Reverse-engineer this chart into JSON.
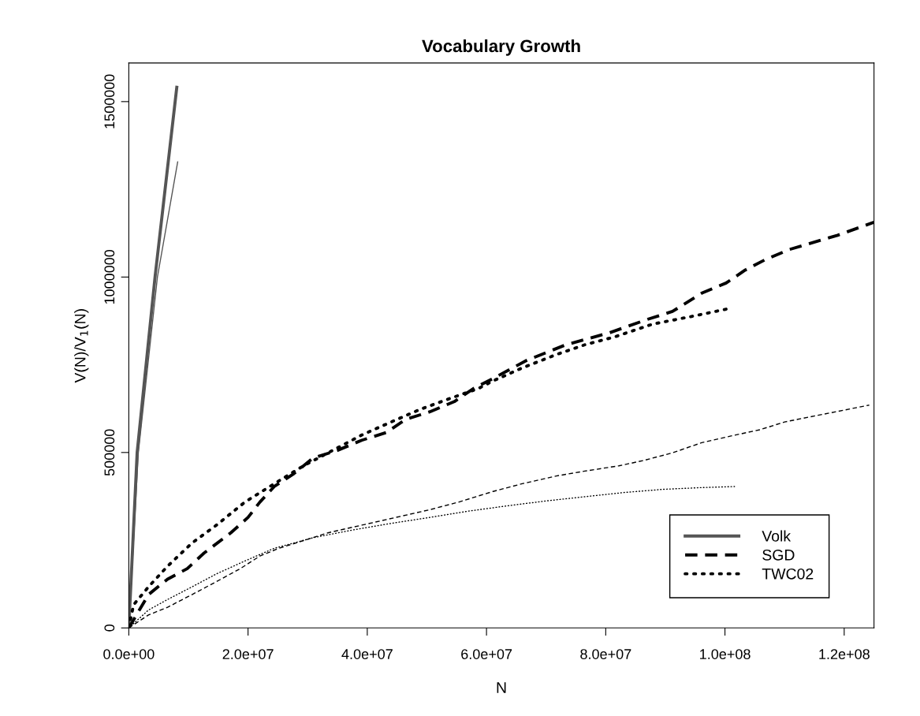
{
  "chart_data": {
    "type": "line",
    "title": "Vocabulary Growth",
    "xlabel": "N",
    "ylabel": "V(N)/V$_{1}$(N)",
    "xlim": [
      0,
      125000000
    ],
    "ylim": [
      0,
      1610000
    ],
    "xticks": [
      {
        "value": 0,
        "label": "0.0e+00"
      },
      {
        "value": 20000000,
        "label": "2.0e+07"
      },
      {
        "value": 40000000,
        "label": "4.0e+07"
      },
      {
        "value": 60000000,
        "label": "6.0e+07"
      },
      {
        "value": 80000000,
        "label": "8.0e+07"
      },
      {
        "value": 100000000,
        "label": "1.0e+08"
      },
      {
        "value": 120000000,
        "label": "1.2e+08"
      }
    ],
    "yticks": [
      0,
      500000,
      1000000,
      1500000
    ],
    "grid": false,
    "legend": "bottom right",
    "marker": "none",
    "series": [
      {
        "name": "Volk",
        "color": "#555555",
        "line_style": "solid",
        "x": [
          0,
          1400000,
          4400000,
          8050000
        ],
        "values": [
          0,
          500000,
          1000000,
          1541000
        ]
      },
      {
        "color": "#555555",
        "line_style": "solid",
        "x": [
          0,
          1600000,
          4800000,
          8200000
        ],
        "values": [
          0,
          500000,
          1000000,
          1328000
        ]
      },
      {
        "name": "SGD",
        "color": "#000000",
        "line_style": "dashed",
        "x": [
          0,
          3300000,
          6500000,
          9800000,
          12600000,
          17100000,
          20000000,
          22000000,
          24400000,
          27700000,
          30900000,
          35000000,
          39100000,
          43200000,
          46400000,
          50500000,
          54600000,
          57800000,
          61100000,
          66800000,
          73300000,
          80600000,
          87100000,
          91200000,
          96100000,
          100200000,
          103400000,
          106700000,
          110700000,
          118900000,
          125000000
        ],
        "values": [
          0,
          95000,
          139000,
          169000,
          213000,
          271000,
          315000,
          359000,
          403000,
          440000,
          484000,
          506000,
          535000,
          557000,
          594000,
          616000,
          645000,
          682000,
          711000,
          763000,
          807000,
          841000,
          880000,
          902000,
          954000,
          983000,
          1020000,
          1049000,
          1078000,
          1119000,
          1156000
        ]
      },
      {
        "color": "#000000",
        "line_style": "dashed",
        "x": [
          0,
          3300000,
          6500000,
          10600000,
          14700000,
          18700000,
          22000000,
          25200000,
          29300000,
          33400000,
          39100000,
          44800000,
          50500000,
          55400000,
          61100000,
          66000000,
          71700000,
          76500000,
          82200000,
          86300000,
          91200000,
          96100000,
          101000000,
          105900000,
          110000000,
          115600000,
          124200000
        ],
        "values": [
          0,
          37000,
          59000,
          95000,
          132000,
          169000,
          205000,
          227000,
          249000,
          271000,
          293000,
          315000,
          337000,
          359000,
          389000,
          411000,
          433000,
          447000,
          462000,
          477000,
          499000,
          528000,
          547000,
          565000,
          587000,
          606000,
          635000
        ]
      },
      {
        "name": "TWC02",
        "color": "#000000",
        "line_style": "dotted",
        "x": [
          0,
          800000,
          3300000,
          6500000,
          10600000,
          14700000,
          19500000,
          24400000,
          29300000,
          34200000,
          39100000,
          44000000,
          48900000,
          53700000,
          58600000,
          61100000,
          66000000,
          71700000,
          76500000,
          81400000,
          87900000,
          94500000,
          100600000
        ],
        "values": [
          0,
          66000,
          117000,
          176000,
          242000,
          293000,
          359000,
          411000,
          462000,
          506000,
          550000,
          587000,
          623000,
          653000,
          682000,
          704000,
          741000,
          779000,
          807000,
          829000,
          866000,
          888000,
          910000
        ]
      },
      {
        "color": "#000000",
        "line_style": "dotted",
        "x": [
          0,
          3300000,
          6500000,
          10600000,
          14700000,
          19500000,
          24400000,
          30900000,
          37500000,
          44000000,
          50500000,
          57000000,
          63500000,
          70000000,
          76500000,
          83100000,
          89600000,
          96100000,
          101600000
        ],
        "values": [
          0,
          51000,
          81000,
          117000,
          154000,
          191000,
          227000,
          257000,
          279000,
          298000,
          315000,
          333000,
          348000,
          362000,
          374000,
          386000,
          395000,
          400000,
          403000
        ]
      }
    ]
  }
}
